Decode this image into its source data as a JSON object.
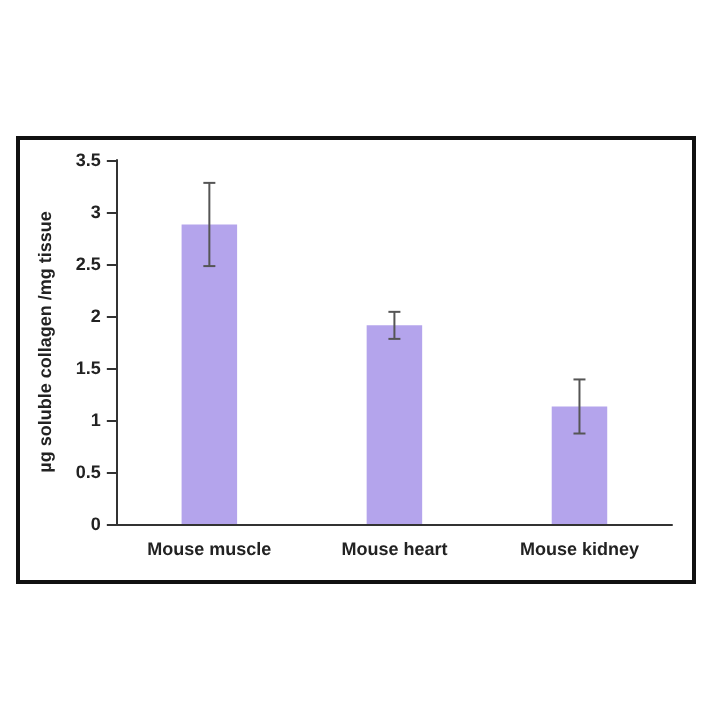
{
  "chart_data": {
    "type": "bar",
    "ylabel": "µg soluble collagen /mg tissue",
    "categories": [
      "Mouse muscle",
      "Mouse heart",
      "Mouse kidney"
    ],
    "values": [
      2.88,
      1.91,
      1.13
    ],
    "errors": [
      0.4,
      0.13,
      0.26
    ],
    "color": "#b4a4ec",
    "ylim": [
      0,
      3.5
    ],
    "yticks": [
      0,
      0.5,
      1,
      1.5,
      2,
      2.5,
      3,
      3.5
    ],
    "grid": false
  }
}
